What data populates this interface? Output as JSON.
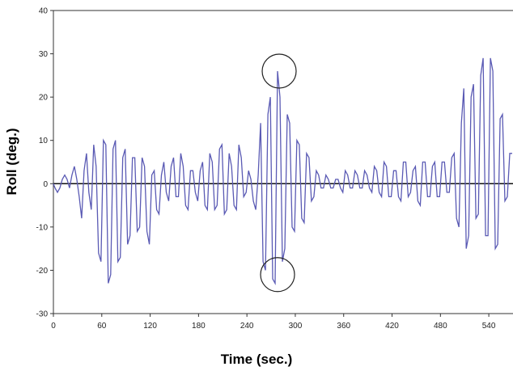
{
  "chart_data": {
    "type": "line",
    "title": "",
    "xlabel": "Time (sec.)",
    "ylabel": "Roll (deg.)",
    "xlim": [
      0,
      570
    ],
    "ylim": [
      -30,
      40
    ],
    "x_ticks": [
      0,
      60,
      120,
      180,
      240,
      300,
      360,
      420,
      480,
      540
    ],
    "x_tick_labels": [
      "0",
      "60",
      "120",
      "180",
      "240",
      "300",
      "360",
      "420",
      "480",
      "540"
    ],
    "y_ticks": [
      -30,
      -20,
      -10,
      0,
      10,
      20,
      30,
      40
    ],
    "y_tick_labels": [
      "-30",
      "-20",
      "-10",
      "0",
      "10",
      "20",
      "30",
      "40"
    ],
    "grid": false,
    "legend": "none",
    "series_color": "#5a5ab4",
    "series": [
      {
        "x": [
          0,
          2,
          5,
          8,
          11,
          14,
          17,
          20,
          23,
          26,
          29,
          32,
          35,
          38,
          41,
          44,
          47,
          50,
          53,
          56,
          59,
          62,
          65,
          68,
          71,
          74,
          77,
          80,
          83,
          86,
          89,
          92,
          95,
          98,
          101,
          104,
          107,
          110,
          113,
          116,
          119,
          122,
          125,
          128,
          131,
          134,
          137,
          140,
          143,
          146,
          149,
          152,
          155,
          158,
          161,
          164,
          167,
          170,
          173,
          176,
          179,
          182,
          185,
          188,
          191,
          194,
          197,
          200,
          203,
          206,
          209,
          212,
          215,
          218,
          221,
          224,
          227,
          230,
          233,
          236,
          239,
          242,
          245,
          248,
          251,
          254,
          257,
          260,
          263,
          266,
          269,
          272,
          275,
          278,
          281,
          284,
          287,
          290,
          293,
          296,
          299,
          302,
          305,
          308,
          311,
          314,
          317,
          320,
          323,
          326,
          329,
          332,
          335,
          338,
          341,
          344,
          347,
          350,
          353,
          356,
          359,
          362,
          365,
          368,
          371,
          374,
          377,
          380,
          383,
          386,
          389,
          392,
          395,
          398,
          401,
          404,
          407,
          410,
          413,
          416,
          419,
          422,
          425,
          428,
          431,
          434,
          437,
          440,
          443,
          446,
          449,
          452,
          455,
          458,
          461,
          464,
          467,
          470,
          473,
          476,
          479,
          482,
          485,
          488,
          491,
          494,
          497,
          500,
          503,
          506,
          509,
          512,
          515,
          518,
          521,
          524,
          527,
          530,
          533,
          536,
          539,
          542,
          545,
          548,
          551,
          554,
          557,
          560,
          563,
          566,
          569
        ],
        "values": [
          0,
          -1,
          -2,
          -1,
          1,
          2,
          1,
          -1,
          2,
          4,
          1,
          -3,
          -8,
          3,
          7,
          -2,
          -6,
          9,
          4,
          -16,
          -18,
          10,
          9,
          -23,
          -21,
          8,
          10,
          -18,
          -17,
          6,
          8,
          -14,
          -12,
          6,
          6,
          -11,
          -10,
          6,
          4,
          -11,
          -14,
          2,
          3,
          -6,
          -7,
          2,
          5,
          -2,
          -4,
          4,
          6,
          -3,
          -3,
          7,
          4,
          -5,
          -6,
          3,
          3,
          -2,
          -4,
          3,
          5,
          -5,
          -6,
          7,
          5,
          -6,
          -5,
          8,
          9,
          -7,
          -6,
          7,
          4,
          -5,
          -6,
          9,
          6,
          -3,
          -2,
          3,
          1,
          -4,
          -6,
          2,
          14,
          -18,
          -20,
          16,
          20,
          -22,
          -23,
          26,
          20,
          -18,
          -15,
          16,
          14,
          -10,
          -11,
          10,
          9,
          -8,
          -9,
          7,
          6,
          -4,
          -3,
          3,
          2,
          -1,
          -1,
          2,
          1,
          -1,
          -1,
          1,
          1,
          -1,
          -2,
          3,
          2,
          -1,
          -1,
          3,
          2,
          -1,
          -1,
          3,
          2,
          -1,
          -2,
          4,
          3,
          -2,
          -3,
          5,
          4,
          -3,
          -3,
          3,
          3,
          -3,
          -4,
          5,
          5,
          -3,
          -2,
          3,
          4,
          -4,
          -5,
          5,
          5,
          -3,
          -3,
          4,
          5,
          -3,
          -3,
          5,
          5,
          -2,
          -2,
          6,
          7,
          -8,
          -10,
          14,
          22,
          -15,
          -12,
          20,
          23,
          -8,
          -7,
          25,
          29,
          -12,
          -12,
          29,
          26,
          -15,
          -14,
          15,
          16,
          -4,
          -3,
          7,
          7
        ]
      }
    ],
    "annotations": [
      {
        "shape": "circle",
        "x": 280,
        "y": 26
      },
      {
        "shape": "circle",
        "x": 278,
        "y": -21
      }
    ]
  }
}
